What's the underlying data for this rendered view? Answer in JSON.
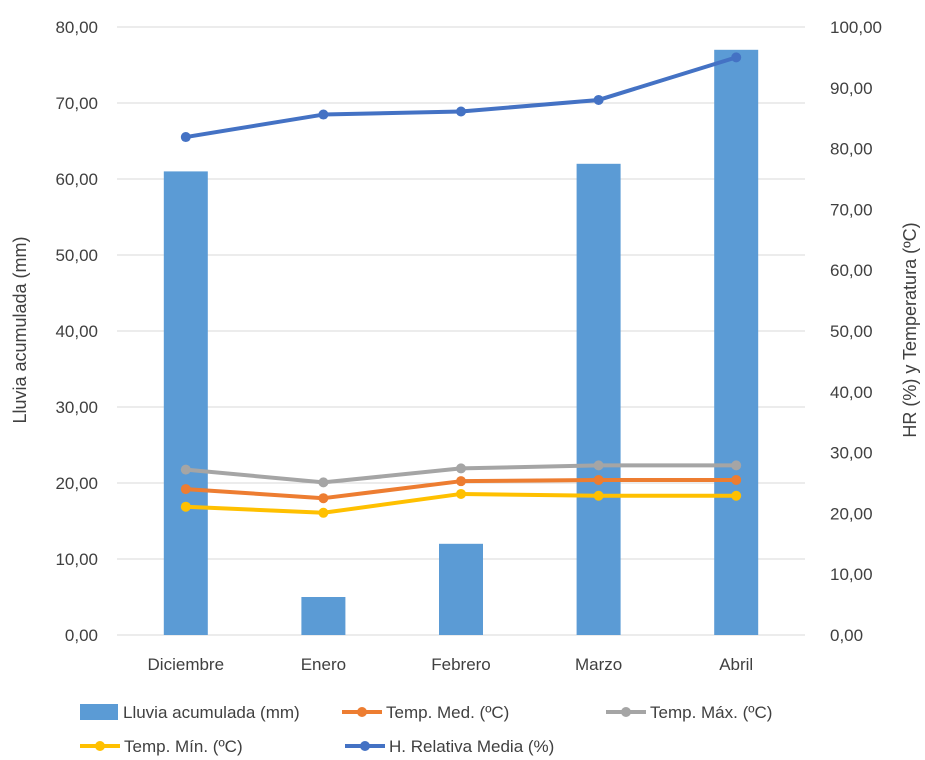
{
  "chart_data": {
    "type": "bar",
    "categories": [
      "Diciembre",
      "Enero",
      "Febrero",
      "Marzo",
      "Abril"
    ],
    "y_left": {
      "label": "Lluvia acumulada (mm)",
      "range": [
        0,
        80
      ],
      "ticks": [
        "0,00",
        "10,00",
        "20,00",
        "30,00",
        "40,00",
        "50,00",
        "60,00",
        "70,00",
        "80,00"
      ]
    },
    "y_right": {
      "label": "HR (%) y Temperatura (ºC)",
      "range": [
        0,
        100
      ],
      "ticks": [
        "0,00",
        "10,00",
        "20,00",
        "30,00",
        "40,00",
        "50,00",
        "60,00",
        "70,00",
        "80,00",
        "90,00",
        "100,00"
      ]
    },
    "series": [
      {
        "name": "Lluvia acumulada (mm)",
        "type": "bar",
        "axis": "left",
        "color": "#5b9bd5",
        "values": [
          61,
          5,
          12,
          62,
          77
        ]
      },
      {
        "name": "Temp. Med. (ºC)",
        "type": "line",
        "axis": "right",
        "color": "#ed7d31",
        "values": [
          24,
          22.5,
          25.3,
          25.5,
          25.5
        ]
      },
      {
        "name": "Temp. Máx. (ºC)",
        "type": "line",
        "axis": "right",
        "color": "#a5a5a5",
        "values": [
          27.2,
          25.1,
          27.4,
          27.9,
          27.9
        ]
      },
      {
        "name": "Temp. Mín. (ºC)",
        "type": "line",
        "axis": "right",
        "color": "#ffc000",
        "values": [
          21.1,
          20.1,
          23.2,
          22.9,
          22.9
        ]
      },
      {
        "name": "H. Relativa Media (%)",
        "type": "line",
        "axis": "right",
        "color": "#4472c4",
        "values": [
          81.9,
          85.6,
          86.1,
          88,
          95
        ]
      }
    ],
    "grid": true,
    "legend_position": "bottom"
  }
}
